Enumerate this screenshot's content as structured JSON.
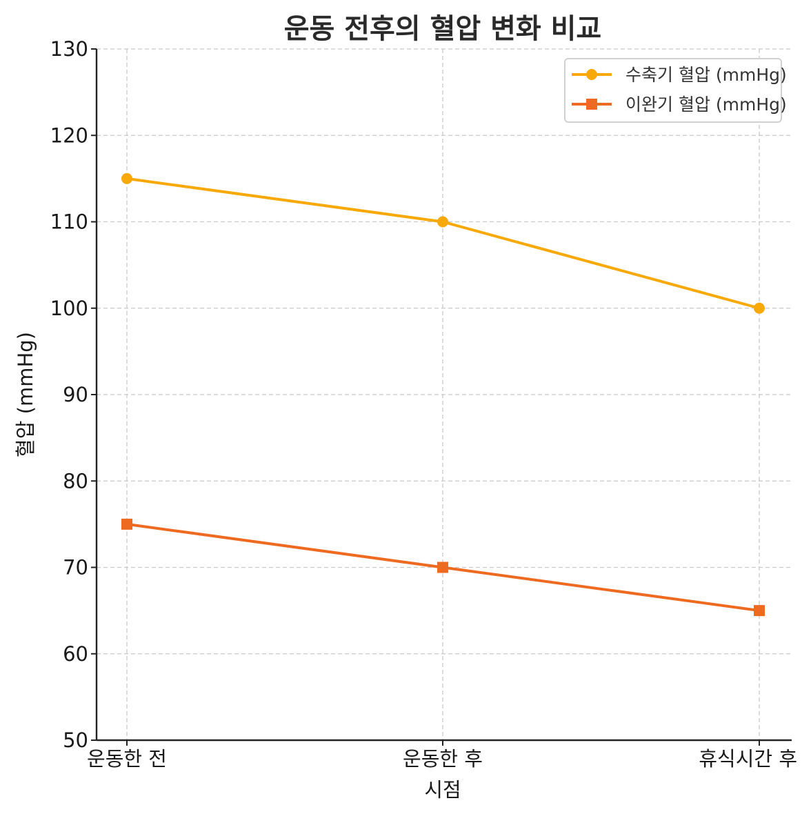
{
  "chart_data": {
    "type": "line",
    "title": "운동 전후의 혈압 변화 비교",
    "xlabel": "시점",
    "ylabel": "혈압 (mmHg)",
    "categories": [
      "운동한 전",
      "운동한 후",
      "휴식시간 후"
    ],
    "ylim": [
      50,
      130
    ],
    "yticks": [
      50,
      60,
      70,
      80,
      90,
      100,
      110,
      120,
      130
    ],
    "grid": true,
    "legend_position": "top-right",
    "series": [
      {
        "name": "수축기 혈압 (mmHg)",
        "values": [
          115,
          110,
          100
        ],
        "color": "#F8A908",
        "marker": "circle"
      },
      {
        "name": "이완기 혈압 (mmHg)",
        "values": [
          75,
          70,
          65
        ],
        "color": "#EE6A21",
        "marker": "square"
      }
    ]
  }
}
